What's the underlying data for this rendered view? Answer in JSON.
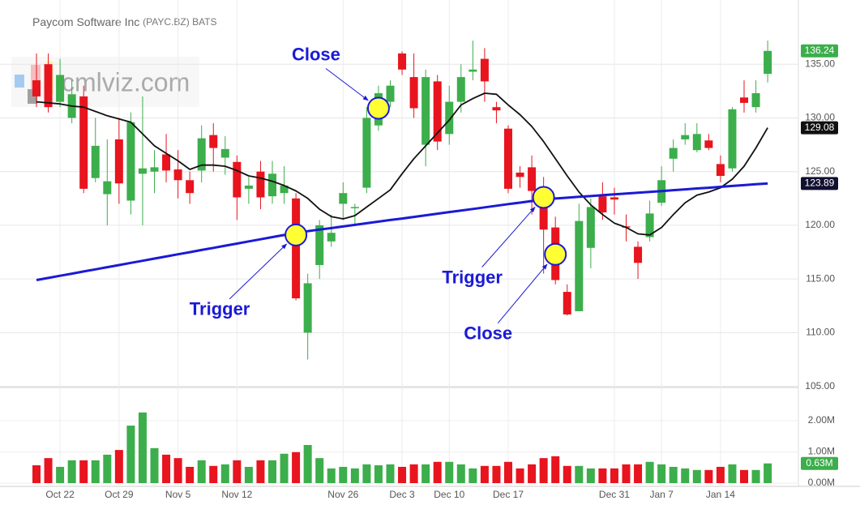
{
  "chart_data": {
    "type": "candlestick",
    "title": "Paycom Software Inc",
    "subtitle": "(PAYC.BZ) BATS",
    "watermark": "cmlviz.com",
    "categories": [
      null,
      null,
      "Oct 22",
      null,
      null,
      null,
      null,
      "Oct 29",
      null,
      null,
      null,
      null,
      "Nov 5",
      null,
      null,
      null,
      null,
      "Nov 12",
      null,
      null,
      null,
      null,
      null,
      null,
      null,
      null,
      "Nov 26",
      null,
      null,
      null,
      null,
      "Dec 3",
      null,
      null,
      null,
      "Dec 10",
      null,
      null,
      null,
      null,
      "Dec 17",
      null,
      null,
      null,
      null,
      null,
      null,
      null,
      null,
      "Dec 31",
      null,
      null,
      null,
      "Jan 7",
      null,
      null,
      null,
      null,
      "Jan 14",
      null,
      null,
      null,
      null
    ],
    "open": [
      133.5,
      135,
      131.5,
      130,
      132,
      124.4,
      122.9,
      128,
      122.3,
      124.8,
      125,
      126.6,
      125.2,
      124.2,
      125.1,
      128.4,
      126.3,
      125.9,
      123.4,
      125,
      122.7,
      123,
      122.5,
      110,
      116.3,
      118.5,
      122,
      121.6,
      123.5,
      129.3,
      131.5,
      136,
      133.8,
      127.5,
      133.4,
      128.5,
      131.5,
      134.3,
      135.5,
      131,
      129,
      124.9,
      125.4,
      123.2,
      119.8,
      113.8,
      112,
      117.9,
      122.7,
      122.6,
      119.9,
      118,
      118.9,
      122.1,
      126.2,
      128,
      127,
      127.9,
      125.7,
      125.3,
      131.9,
      131,
      134.1
    ],
    "high": [
      136,
      136,
      135.5,
      133.5,
      133,
      130,
      128,
      130,
      130.5,
      132,
      127,
      128.5,
      127,
      125,
      129.3,
      129.5,
      128.3,
      126.5,
      124.5,
      126,
      126,
      125.5,
      123,
      115.5,
      120.5,
      121,
      124,
      122,
      131,
      133,
      133.5,
      136.2,
      136,
      134.5,
      134,
      133,
      135,
      137.2,
      136.5,
      131.5,
      129.3,
      125.5,
      126.5,
      124.5,
      120.8,
      114.5,
      122,
      122.5,
      124,
      123.5,
      121,
      118.5,
      122.3,
      125.5,
      128,
      129.5,
      129.5,
      128.5,
      126.5,
      131,
      133.5,
      133.5,
      137.2
    ],
    "low": [
      131,
      130.5,
      131,
      129.5,
      123,
      124,
      120,
      122,
      121,
      120,
      123,
      124,
      122.5,
      122,
      124,
      125,
      124.7,
      120.5,
      122,
      121.5,
      122,
      122,
      113,
      107.5,
      115,
      118,
      120.5,
      120,
      123,
      128.8,
      131,
      134,
      130,
      125.5,
      127,
      127.5,
      130.5,
      133.5,
      131.5,
      129.5,
      123,
      123.5,
      121,
      115.5,
      114.5,
      111.6,
      112,
      116,
      120.5,
      121,
      118.5,
      115,
      118.5,
      121.8,
      125,
      127.5,
      126.8,
      127,
      124,
      125,
      130.5,
      130.5,
      133.3
    ],
    "close": [
      132,
      131,
      134,
      132.2,
      123.4,
      127.4,
      124.1,
      123.9,
      129.6,
      125.3,
      125.4,
      125.1,
      124.2,
      123,
      128.1,
      127.2,
      127.1,
      122.6,
      123.7,
      122.6,
      124.8,
      123.7,
      113.2,
      114.6,
      120,
      119.3,
      123,
      121.7,
      130,
      132.3,
      133,
      134.5,
      130.9,
      133.8,
      127.8,
      131.5,
      133.8,
      134.5,
      133.4,
      130.7,
      123.4,
      124.5,
      123.2,
      119.6,
      114.9,
      111.7,
      120.4,
      121.7,
      121.2,
      122.4,
      119.8,
      116.5,
      121.1,
      124.2,
      127.2,
      128.4,
      128.5,
      127.2,
      124.6,
      130.8,
      131.4,
      132.3,
      136.24
    ],
    "up_color": "#3cae4b",
    "down_color": "#e8141e",
    "last_color": "#3cae4b",
    "ylim": [
      104.9,
      140.6
    ],
    "yticks": [
      {
        "value": 105,
        "label": "105.00"
      },
      {
        "value": 110,
        "label": "110.00"
      },
      {
        "value": 115,
        "label": "115.00"
      },
      {
        "value": 120,
        "label": "120.00"
      },
      {
        "value": 125,
        "label": "125.00"
      },
      {
        "value": 130,
        "label": "130.00"
      },
      {
        "value": 135,
        "label": "135.00"
      }
    ],
    "grid": true,
    "overlays": [
      {
        "color": "#111111",
        "width": 1.8,
        "values": [
          131.5,
          131.4,
          131.3,
          131.1,
          131,
          130.6,
          130.2,
          129.9,
          129.6,
          128.5,
          127.4,
          126.7,
          126,
          125.2,
          125.6,
          125.6,
          125.5,
          125.1,
          124.6,
          124.4,
          124.1,
          123.7,
          123.2,
          122.5,
          121.5,
          120.8,
          120.6,
          120.9,
          121.7,
          122.5,
          123.3,
          124.8,
          126.2,
          127.4,
          128.6,
          129.8,
          131.2,
          131.8,
          132.3,
          132.2,
          131.2,
          130.3,
          129.2,
          127.8,
          126.2,
          124.6,
          123.1,
          121.9,
          121,
          120.2,
          119.8,
          119.2,
          119.1,
          119.8,
          121,
          122.1,
          122.8,
          123.1,
          123.5,
          124.3,
          125.5,
          127.2,
          129.08
        ]
      },
      {
        "color": "#1a1ad6",
        "width": 3,
        "values": [
          114.9,
          115.1,
          115.3,
          115.5,
          115.7,
          115.9,
          116.1,
          116.3,
          116.5,
          116.7,
          116.9,
          117.1,
          117.3,
          117.5,
          117.7,
          117.9,
          118.1,
          118.3,
          118.5,
          118.7,
          118.9,
          119.1,
          119.3,
          119.45,
          119.6,
          119.74,
          119.89,
          120.04,
          120.19,
          120.34,
          120.49,
          120.63,
          120.78,
          120.93,
          121.08,
          121.23,
          121.37,
          121.52,
          121.67,
          121.82,
          121.97,
          122.11,
          122.26,
          122.41,
          122.49,
          122.57,
          122.65,
          122.72,
          122.8,
          122.88,
          122.96,
          123.04,
          123.11,
          123.19,
          123.27,
          123.35,
          123.43,
          123.5,
          123.58,
          123.66,
          123.74,
          123.82,
          123.89
        ]
      }
    ],
    "volume": {
      "values": [
        0.57,
        0.8,
        0.52,
        0.73,
        0.73,
        0.73,
        0.91,
        1.06,
        1.84,
        2.26,
        1.12,
        0.91,
        0.8,
        0.52,
        0.73,
        0.55,
        0.6,
        0.73,
        0.52,
        0.73,
        0.73,
        0.94,
        0.99,
        1.22,
        0.8,
        0.47,
        0.52,
        0.47,
        0.6,
        0.57,
        0.6,
        0.52,
        0.6,
        0.6,
        0.68,
        0.68,
        0.6,
        0.47,
        0.55,
        0.55,
        0.68,
        0.47,
        0.6,
        0.8,
        0.86,
        0.55,
        0.55,
        0.47,
        0.47,
        0.47,
        0.6,
        0.6,
        0.68,
        0.6,
        0.52,
        0.47,
        0.42,
        0.42,
        0.52,
        0.6,
        0.42,
        0.42,
        0.63
      ],
      "value_labels": [
        null,
        null,
        null,
        null,
        null,
        null,
        null,
        null,
        null,
        null,
        null,
        null,
        null,
        null,
        null,
        null,
        null,
        null,
        null,
        null,
        null,
        null,
        null,
        null,
        null,
        null,
        null,
        null,
        null,
        null,
        null,
        null,
        null,
        null,
        null,
        null,
        null,
        null,
        null,
        null,
        null,
        null,
        null,
        null,
        null,
        null,
        null,
        null,
        null,
        null,
        null,
        null,
        null,
        null,
        null,
        null,
        null,
        null,
        null,
        null,
        null,
        null,
        "0.63M"
      ],
      "ylim": [
        0,
        3.06
      ],
      "yticks": [
        {
          "value": 0,
          "label": "0.00M"
        },
        {
          "value": 1,
          "label": "1.00M"
        },
        {
          "value": 2,
          "label": "2.00M"
        }
      ]
    },
    "annotations": [
      {
        "text": "Close",
        "index": 29,
        "value": 130.9
      },
      {
        "text": "Trigger",
        "index": 22,
        "value": 119.1
      },
      {
        "text": "Trigger",
        "index": 43,
        "value": 122.6
      },
      {
        "text": "Close",
        "index": 44,
        "value": 117.3
      }
    ],
    "marker_color": "#ffff33",
    "annotation_color": "#1a1ad6"
  }
}
